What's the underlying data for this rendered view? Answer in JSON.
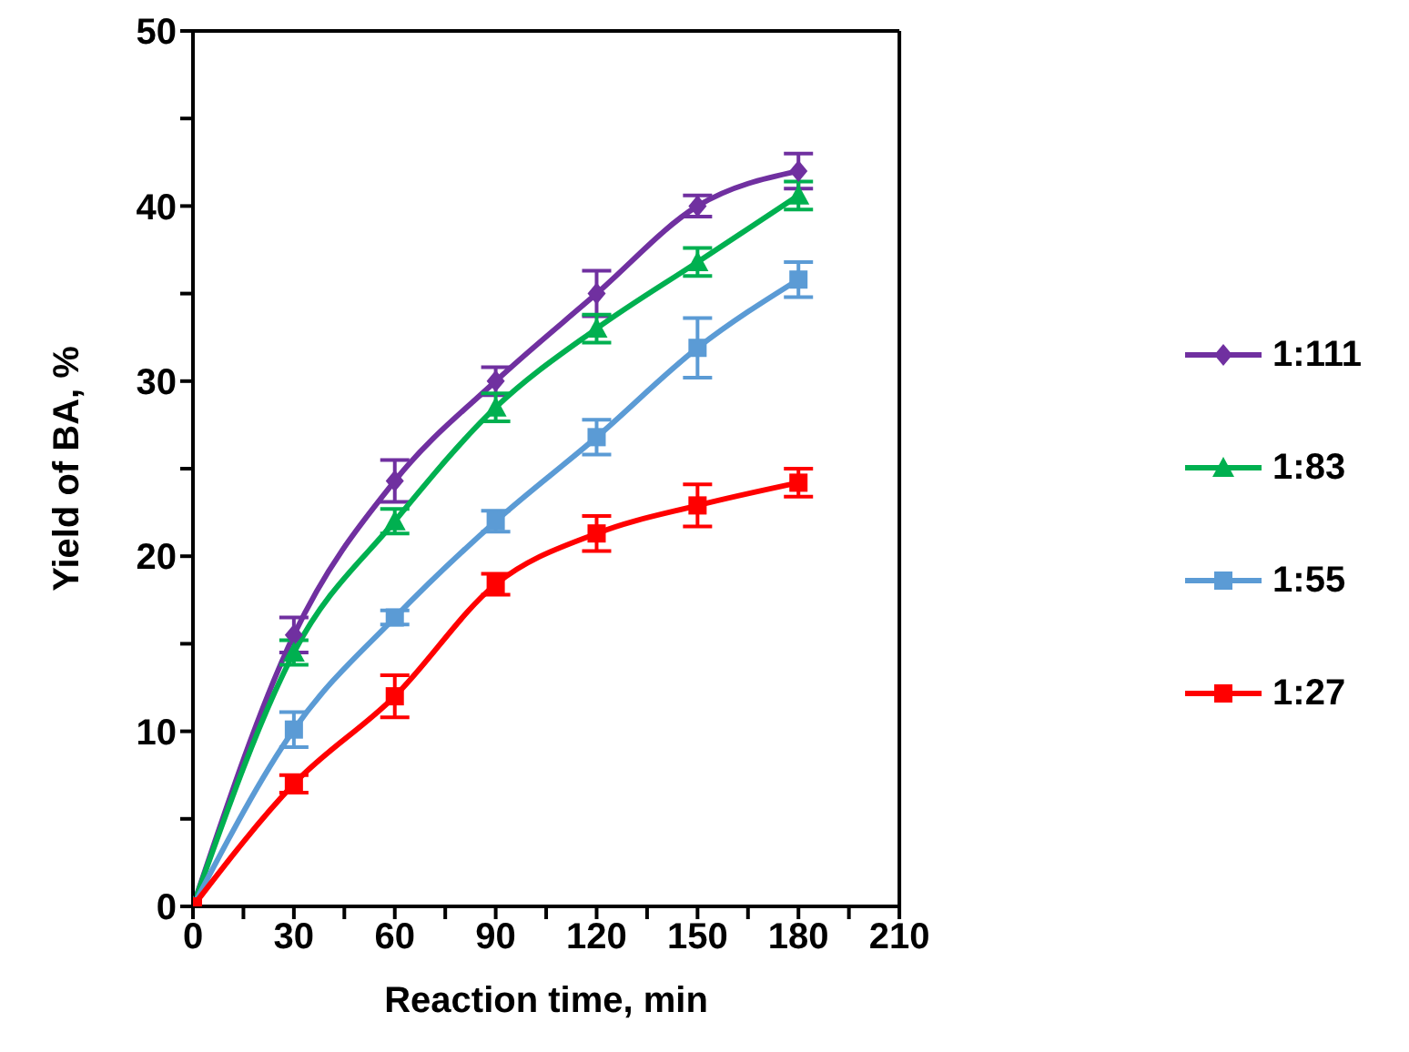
{
  "chart_data": {
    "type": "line",
    "xlabel": "Reaction time, min",
    "ylabel": "Yield of BA, %",
    "x": [
      0,
      30,
      60,
      90,
      120,
      150,
      180
    ],
    "xlim": [
      0,
      210
    ],
    "xticks": [
      0,
      {
        "value": 15,
        "label": null
      },
      30,
      {
        "value": 45,
        "label": null
      },
      60,
      {
        "value": 75,
        "label": null
      },
      90,
      {
        "value": 105,
        "label": null
      },
      120,
      {
        "value": 135,
        "label": null
      },
      150,
      {
        "value": 165,
        "label": null
      },
      180,
      {
        "value": 195,
        "label": null
      },
      210
    ],
    "ylim": [
      0,
      50
    ],
    "yticks": [
      0,
      {
        "value": 5,
        "label": null
      },
      10,
      {
        "value": 15,
        "label": null
      },
      20,
      {
        "value": 25,
        "label": null
      },
      30,
      {
        "value": 35,
        "label": null
      },
      40,
      {
        "value": 45,
        "label": null
      },
      50
    ],
    "grid": false,
    "legend": "right",
    "line_style": "solid",
    "series": [
      {
        "name": "1:111",
        "color": "#7030a0",
        "marker": "diamond",
        "values": [
          0,
          15.5,
          24.3,
          30,
          35,
          40,
          42
        ],
        "errors": [
          null,
          1,
          1.2,
          0.8,
          1.3,
          0.6,
          1
        ]
      },
      {
        "name": "1:83",
        "color": "#00b050",
        "marker": "triangle",
        "values": [
          0,
          14.5,
          22,
          28.5,
          33,
          36.8,
          40.6
        ],
        "errors": [
          null,
          0.7,
          0.7,
          0.8,
          0.8,
          0.8,
          0.8
        ]
      },
      {
        "name": "1:55",
        "color": "#5b9bd5",
        "marker": "square",
        "values": [
          0,
          10.1,
          16.5,
          22,
          26.8,
          31.9,
          35.8
        ],
        "errors": [
          null,
          1,
          0.4,
          0.6,
          1,
          1.7,
          1
        ]
      },
      {
        "name": "1:27",
        "color": "#ff0000",
        "marker": "square",
        "values": [
          0,
          7,
          12,
          18.4,
          21.3,
          22.9,
          24.2
        ],
        "errors": [
          null,
          0.5,
          1.2,
          0.6,
          1,
          1.2,
          0.8
        ]
      }
    ]
  }
}
